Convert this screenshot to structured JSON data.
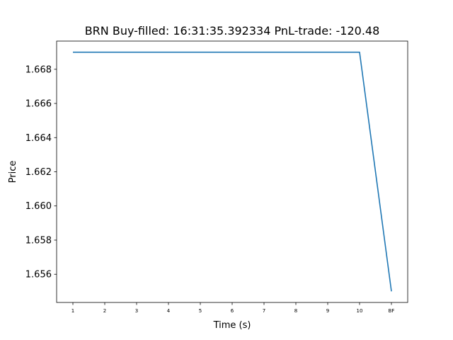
{
  "chart_data": {
    "type": "line",
    "title": "BRN  Buy-filled:  16:31:35.392334  PnL-trade:  -120.48",
    "xlabel": "Time (s)",
    "ylabel": "Price",
    "categories": [
      "1",
      "2",
      "3",
      "4",
      "5",
      "6",
      "7",
      "8",
      "9",
      "10",
      "BF"
    ],
    "series": [
      {
        "values": [
          1.669,
          1.669,
          1.669,
          1.669,
          1.669,
          1.669,
          1.669,
          1.669,
          1.669,
          1.669,
          1.655
        ],
        "color": "#1f77b4"
      }
    ],
    "yticks": [
      "1.656",
      "1.658",
      "1.660",
      "1.662",
      "1.664",
      "1.666",
      "1.668"
    ],
    "ylim": [
      1.65435,
      1.66965
    ],
    "grid": false,
    "legend": "none"
  }
}
